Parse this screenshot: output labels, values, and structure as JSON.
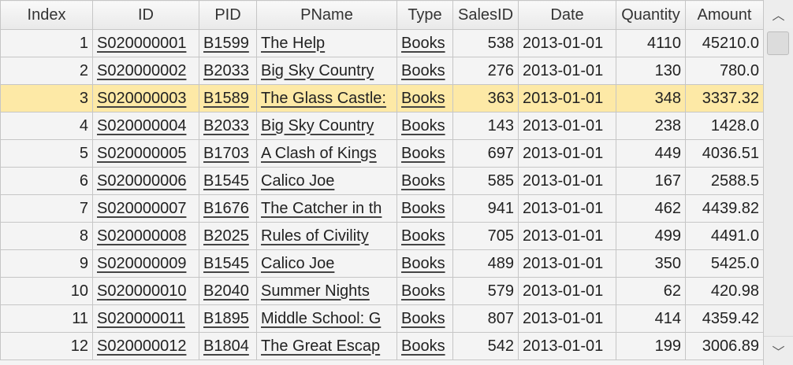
{
  "columns": [
    "Index",
    "ID",
    "PID",
    "PName",
    "Type",
    "SalesID",
    "Date",
    "Quantity",
    "Amount"
  ],
  "rows": [
    {
      "index": "1",
      "id": "S020000001",
      "pid": "B1599",
      "pname": "The Help",
      "type": "Books",
      "salesid": "538",
      "date": "2013-01-01",
      "quantity": "4110",
      "amount": "45210.0"
    },
    {
      "index": "2",
      "id": "S020000002",
      "pid": "B2033",
      "pname": "Big Sky Country",
      "type": "Books",
      "salesid": "276",
      "date": "2013-01-01",
      "quantity": "130",
      "amount": "780.0"
    },
    {
      "index": "3",
      "id": "S020000003",
      "pid": "B1589",
      "pname": "The Glass Castle:",
      "type": "Books",
      "salesid": "363",
      "date": "2013-01-01",
      "quantity": "348",
      "amount": "3337.32",
      "selected": true
    },
    {
      "index": "4",
      "id": "S020000004",
      "pid": "B2033",
      "pname": "Big Sky Country",
      "type": "Books",
      "salesid": "143",
      "date": "2013-01-01",
      "quantity": "238",
      "amount": "1428.0"
    },
    {
      "index": "5",
      "id": "S020000005",
      "pid": "B1703",
      "pname": "A Clash of Kings",
      "type": "Books",
      "salesid": "697",
      "date": "2013-01-01",
      "quantity": "449",
      "amount": "4036.51"
    },
    {
      "index": "6",
      "id": "S020000006",
      "pid": "B1545",
      "pname": "Calico Joe",
      "type": "Books",
      "salesid": "585",
      "date": "2013-01-01",
      "quantity": "167",
      "amount": "2588.5"
    },
    {
      "index": "7",
      "id": "S020000007",
      "pid": "B1676",
      "pname": "The Catcher in th",
      "type": "Books",
      "salesid": "941",
      "date": "2013-01-01",
      "quantity": "462",
      "amount": "4439.82"
    },
    {
      "index": "8",
      "id": "S020000008",
      "pid": "B2025",
      "pname": "Rules of Civility",
      "type": "Books",
      "salesid": "705",
      "date": "2013-01-01",
      "quantity": "499",
      "amount": "4491.0"
    },
    {
      "index": "9",
      "id": "S020000009",
      "pid": "B1545",
      "pname": "Calico Joe",
      "type": "Books",
      "salesid": "489",
      "date": "2013-01-01",
      "quantity": "350",
      "amount": "5425.0"
    },
    {
      "index": "10",
      "id": "S020000010",
      "pid": "B2040",
      "pname": "Summer Nights",
      "type": "Books",
      "salesid": "579",
      "date": "2013-01-01",
      "quantity": "62",
      "amount": "420.98"
    },
    {
      "index": "11",
      "id": "S020000011",
      "pid": "B1895",
      "pname": "Middle School: G",
      "type": "Books",
      "salesid": "807",
      "date": "2013-01-01",
      "quantity": "414",
      "amount": "4359.42"
    },
    {
      "index": "12",
      "id": "S020000012",
      "pid": "B1804",
      "pname": "The Great Escap",
      "type": "Books",
      "salesid": "542",
      "date": "2013-01-01",
      "quantity": "199",
      "amount": "3006.89"
    }
  ],
  "scrollbar": {
    "up_icon": "chevron-up-icon",
    "down_icon": "chevron-down-icon",
    "up_glyph": "︿",
    "down_glyph": "﹀"
  },
  "colors": {
    "selected_row": "#fde9a6",
    "number_blue": "#1f1fdc",
    "amount": "#a26363"
  }
}
